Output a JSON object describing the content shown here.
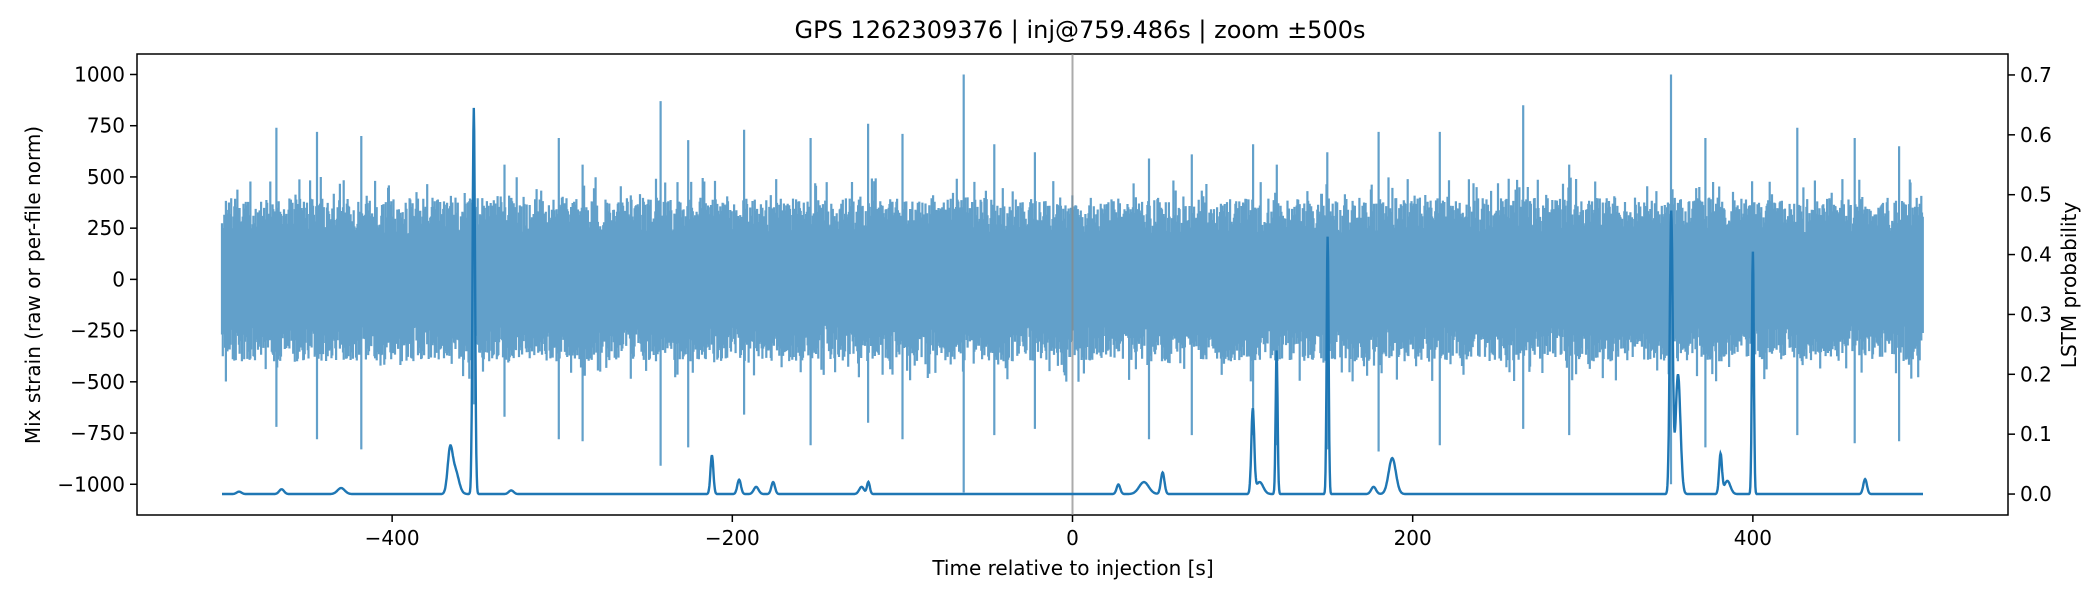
{
  "chart_data": {
    "type": "line",
    "title": "GPS 1262309376 | inj@759.486s | zoom ±500s",
    "xlabel": "Time relative to injection [s]",
    "ylabel_left": "Mix strain (raw or per-file norm)",
    "ylabel_right": "LSTM probability",
    "xlim": [
      -550,
      550
    ],
    "ylim_left": [
      -1150,
      1100
    ],
    "ylim_right": [
      -0.035,
      0.735
    ],
    "x_ticks": [
      -400,
      -200,
      0,
      200,
      400
    ],
    "x_tick_labels": [
      "−400",
      "−200",
      "0",
      "200",
      "400"
    ],
    "y_left_ticks": [
      1000,
      750,
      500,
      250,
      0,
      -250,
      -500,
      -750,
      -1000
    ],
    "y_left_tick_labels": [
      "1000",
      "750",
      "500",
      "250",
      "0",
      "−250",
      "−500",
      "−750",
      "−1000"
    ],
    "y_right_ticks": [
      0.7,
      0.6,
      0.5,
      0.4,
      0.3,
      0.2,
      0.1,
      0.0
    ],
    "y_right_tick_labels": [
      "0.7",
      "0.6",
      "0.5",
      "0.4",
      "0.3",
      "0.2",
      "0.1",
      "0.0"
    ],
    "grid": false,
    "injection_marker_x": 0,
    "series": [
      {
        "axis": "left",
        "color": "#1f77b4",
        "x_range": [
          -500,
          500
        ],
        "typical_envelope": [
          -400,
          400
        ],
        "spikes": [
          {
            "x": -468,
            "max": 740,
            "min": -720
          },
          {
            "x": -444,
            "max": 720,
            "min": -780
          },
          {
            "x": -418,
            "max": 700,
            "min": -830
          },
          {
            "x": -352,
            "max": 800,
            "min": -610
          },
          {
            "x": -334,
            "max": 560,
            "min": -670
          },
          {
            "x": -302,
            "max": 690,
            "min": -780
          },
          {
            "x": -288,
            "max": 560,
            "min": -790
          },
          {
            "x": -242,
            "max": 870,
            "min": -910
          },
          {
            "x": -226,
            "max": 680,
            "min": -820
          },
          {
            "x": -193,
            "max": 730,
            "min": -660
          },
          {
            "x": -154,
            "max": 690,
            "min": -810
          },
          {
            "x": -120,
            "max": 760,
            "min": -700
          },
          {
            "x": -100,
            "max": 710,
            "min": -780
          },
          {
            "x": -64,
            "max": 1000,
            "min": -1040
          },
          {
            "x": -46,
            "max": 660,
            "min": -760
          },
          {
            "x": -22,
            "max": 620,
            "min": -730
          },
          {
            "x": 0,
            "max": 410,
            "min": -250
          },
          {
            "x": 45,
            "max": 590,
            "min": -780
          },
          {
            "x": 70,
            "max": 610,
            "min": -760
          },
          {
            "x": 106,
            "max": 660,
            "min": -760
          },
          {
            "x": 120,
            "max": 560,
            "min": -810
          },
          {
            "x": 150,
            "max": 620,
            "min": -830
          },
          {
            "x": 180,
            "max": 720,
            "min": -840
          },
          {
            "x": 216,
            "max": 720,
            "min": -810
          },
          {
            "x": 265,
            "max": 850,
            "min": -730
          },
          {
            "x": 292,
            "max": 560,
            "min": -760
          },
          {
            "x": 352,
            "max": 1000,
            "min": -1000
          },
          {
            "x": 372,
            "max": 690,
            "min": -820
          },
          {
            "x": 426,
            "max": 740,
            "min": -760
          },
          {
            "x": 460,
            "max": 690,
            "min": -800
          },
          {
            "x": 486,
            "max": 650,
            "min": -790
          }
        ]
      },
      {
        "axis": "right",
        "color": "#1f77b4",
        "baseline": 0.0,
        "peaks": [
          {
            "x": -490,
            "y": 0.004,
            "w": 2
          },
          {
            "x": -465,
            "y": 0.008,
            "w": 2
          },
          {
            "x": -430,
            "y": 0.01,
            "w": 3
          },
          {
            "x": -366,
            "y": 0.065,
            "w": 2
          },
          {
            "x": -363,
            "y": 0.04,
            "w": 3
          },
          {
            "x": -352,
            "y": 0.645,
            "w": 1
          },
          {
            "x": -330,
            "y": 0.006,
            "w": 2
          },
          {
            "x": -212,
            "y": 0.065,
            "w": 1.2
          },
          {
            "x": -196,
            "y": 0.024,
            "w": 1.5
          },
          {
            "x": -186,
            "y": 0.012,
            "w": 2
          },
          {
            "x": -176,
            "y": 0.02,
            "w": 1.5
          },
          {
            "x": -124,
            "y": 0.012,
            "w": 2
          },
          {
            "x": -120,
            "y": 0.02,
            "w": 1.2
          },
          {
            "x": 27,
            "y": 0.016,
            "w": 1.5
          },
          {
            "x": 42,
            "y": 0.02,
            "w": 4
          },
          {
            "x": 53,
            "y": 0.036,
            "w": 1.5
          },
          {
            "x": 106,
            "y": 0.14,
            "w": 1.2
          },
          {
            "x": 110,
            "y": 0.02,
            "w": 3
          },
          {
            "x": 120,
            "y": 0.24,
            "w": 0.8
          },
          {
            "x": 150,
            "y": 0.43,
            "w": 0.8
          },
          {
            "x": 177,
            "y": 0.012,
            "w": 2
          },
          {
            "x": 188,
            "y": 0.06,
            "w": 3
          },
          {
            "x": 352,
            "y": 0.47,
            "w": 1.2
          },
          {
            "x": 356,
            "y": 0.2,
            "w": 2
          },
          {
            "x": 381,
            "y": 0.066,
            "w": 1.2
          },
          {
            "x": 385,
            "y": 0.022,
            "w": 2.5
          },
          {
            "x": 400,
            "y": 0.405,
            "w": 0.8
          },
          {
            "x": 466,
            "y": 0.025,
            "w": 1.5
          }
        ]
      }
    ]
  }
}
